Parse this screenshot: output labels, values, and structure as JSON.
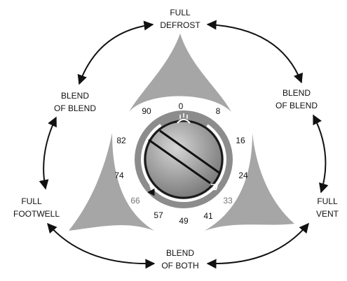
{
  "modes": {
    "full_defrost": [
      "FULL",
      "DEFROST"
    ],
    "blend_left": [
      "BLEND",
      "OF BLEND"
    ],
    "blend_right": [
      "BLEND",
      "OF BLEND"
    ],
    "full_footwell": [
      "FULL",
      "FOOTWELL"
    ],
    "full_vent": [
      "FULL",
      "VENT"
    ],
    "blend_of_both": [
      "BLEND",
      "OF BOTH"
    ]
  },
  "dial": {
    "positions": [
      "0",
      "8",
      "16",
      "24",
      "33",
      "41",
      "49",
      "57",
      "66",
      "74",
      "82",
      "90"
    ],
    "muted_positions": [
      "33",
      "66"
    ],
    "icons": [
      "defrost-icon",
      "footwell-icon",
      "vent-icon"
    ]
  },
  "colors": {
    "wedge": "#a6a6a6",
    "bezel": "#8c8c8c",
    "knob": "#9a9a9a",
    "text": "#111111",
    "muted_text": "#777777"
  }
}
